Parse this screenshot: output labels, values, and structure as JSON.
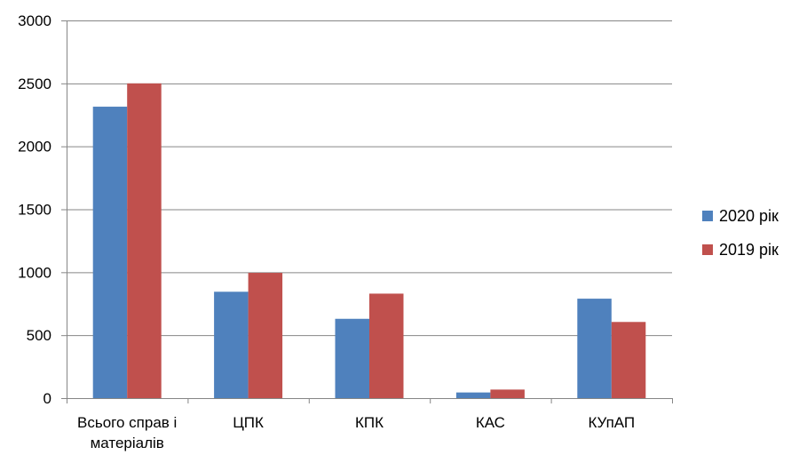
{
  "chart_data": {
    "type": "bar",
    "categories": [
      [
        "Всього справ і",
        "матеріалів"
      ],
      [
        "ЦПК"
      ],
      [
        "КПК"
      ],
      [
        "КАС"
      ],
      [
        "КУпАП"
      ]
    ],
    "series": [
      {
        "name": "2020 рік",
        "color": "#4f81bd",
        "values": [
          2315,
          845,
          630,
          45,
          790
        ]
      },
      {
        "name": "2019 рік",
        "color": "#c0504d",
        "values": [
          2500,
          995,
          830,
          68,
          605
        ]
      }
    ],
    "ylim": [
      0,
      3000
    ],
    "yticks": [
      0,
      500,
      1000,
      1500,
      2000,
      2500,
      3000
    ],
    "grid": true,
    "legend_position": "right"
  }
}
